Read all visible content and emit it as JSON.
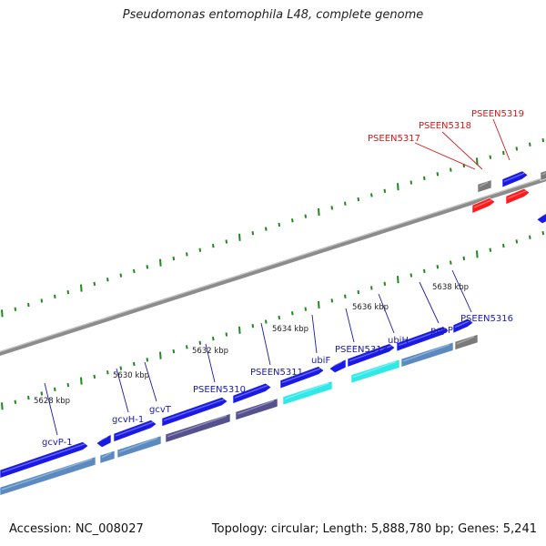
{
  "title": "Pseudomonas entomophila L48, complete genome",
  "footer": {
    "accession": "Accession: NC_008027",
    "summary": "Topology: circular; Length: 5,888,780 bp; Genes: 5,241"
  },
  "colors": {
    "gene_blue": "#1a1ae8",
    "gene_dark_blue": "#0a0a9a",
    "gene_steel": "#5a8ac0",
    "gene_cyan": "#30e8e8",
    "gene_purple": "#55508e",
    "gene_gray": "#7a7a7a",
    "gene_red": "#ff1a1a",
    "label_blue": "#1a1aa8",
    "label_red": "#d01a1a",
    "tick_green": "#1e8a1e",
    "backbone": "#8c8c8c"
  },
  "scale_labels": [
    "5628 kbp",
    "5630 kbp",
    "5632 kbp",
    "5634 kbp",
    "5636 kbp",
    "5638 kbp"
  ],
  "gene_labels": [
    {
      "text": "gcvP-1",
      "color": "blue"
    },
    {
      "text": "gcvH-1",
      "color": "blue"
    },
    {
      "text": "gcvT",
      "color": "blue"
    },
    {
      "text": "PSEEN5310",
      "color": "blue"
    },
    {
      "text": "PSEEN5311",
      "color": "blue"
    },
    {
      "text": "ubiF",
      "color": "blue"
    },
    {
      "text": "PSEEN5313",
      "color": "blue"
    },
    {
      "text": "ubiH",
      "color": "blue"
    },
    {
      "text": "pepP",
      "color": "blue"
    },
    {
      "text": "PSEEN5316",
      "color": "blue"
    },
    {
      "text": "PSEEN5317",
      "color": "red"
    },
    {
      "text": "PSEEN5318",
      "color": "red"
    },
    {
      "text": "PSEEN5319",
      "color": "red"
    }
  ]
}
